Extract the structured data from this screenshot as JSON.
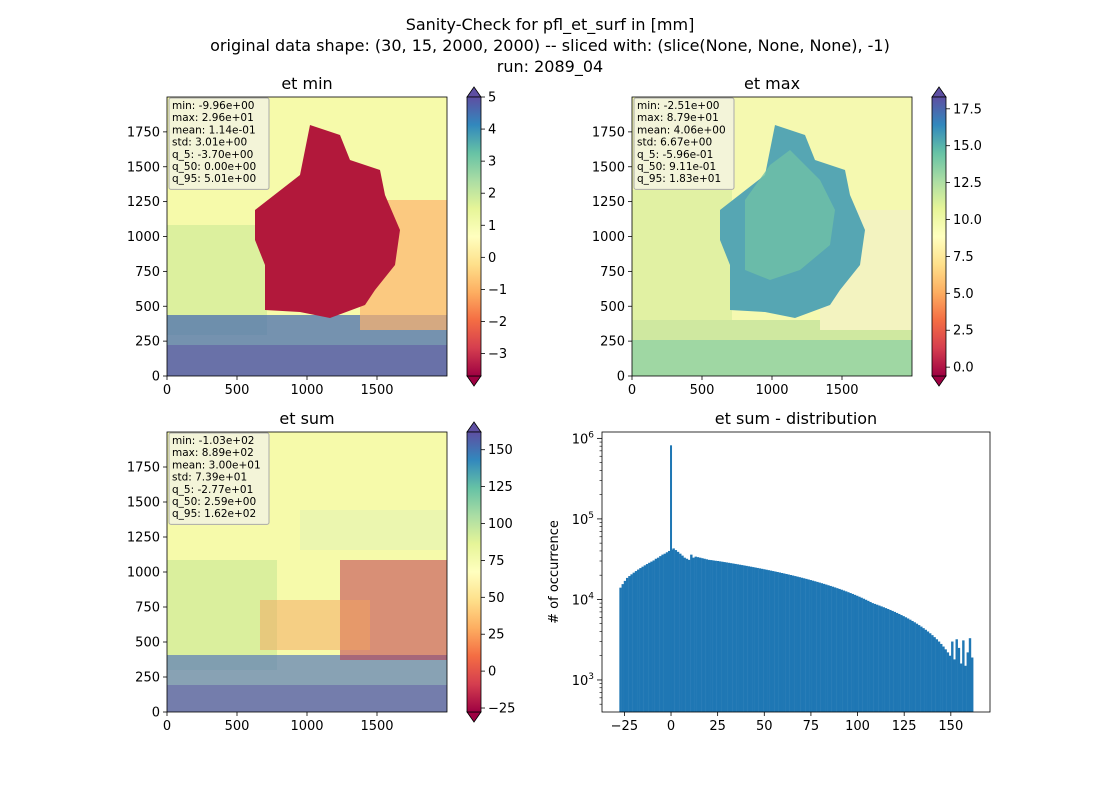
{
  "figure": {
    "title_lines": [
      "Sanity-Check for pfl_et_surf in [mm]",
      "original data shape: (30, 15, 2000, 2000) -- sliced with: (slice(None, None, None), -1)",
      "run: 2089_04"
    ]
  },
  "chart_data": [
    {
      "type": "heatmap",
      "title": "et min",
      "x_ticks": [
        0,
        500,
        1000,
        1500
      ],
      "y_ticks": [
        0,
        250,
        500,
        750,
        1000,
        1250,
        1500,
        1750
      ],
      "xlim": [
        0,
        2000
      ],
      "ylim": [
        0,
        2000
      ],
      "colormap": "Spectral",
      "colorbar": {
        "vmin": -3.7,
        "vmax": 5.0,
        "ticks": [
          -3,
          -2,
          -1,
          0,
          1,
          2,
          3,
          4,
          5
        ],
        "extend": "both"
      },
      "stats": [
        "min: -9.96e+00",
        "max: 2.96e+01",
        "mean: 1.14e-01",
        "std: 3.01e+00",
        "q_5: -3.70e+00",
        "q_50: 0.00e+00",
        "q_95: 5.01e+00"
      ]
    },
    {
      "type": "heatmap",
      "title": "et max",
      "x_ticks": [
        0,
        500,
        1000,
        1500
      ],
      "y_ticks": [
        0,
        250,
        500,
        750,
        1000,
        1250,
        1500,
        1750
      ],
      "xlim": [
        0,
        2000
      ],
      "ylim": [
        0,
        2000
      ],
      "colormap": "Spectral",
      "colorbar": {
        "vmin": -0.6,
        "vmax": 18.3,
        "ticks": [
          0.0,
          2.5,
          5.0,
          7.5,
          10.0,
          12.5,
          15.0,
          17.5
        ],
        "tick_labels": [
          "0.0",
          "2.5",
          "5.0",
          "7.5",
          "10.0",
          "12.5",
          "15.0",
          "17.5"
        ],
        "extend": "both"
      },
      "stats": [
        "min: -2.51e+00",
        "max: 8.79e+01",
        "mean: 4.06e+00",
        "std: 6.67e+00",
        "q_5: -5.96e-01",
        "q_50: 9.11e-01",
        "q_95: 1.83e+01"
      ]
    },
    {
      "type": "heatmap",
      "title": "et sum",
      "x_ticks": [
        0,
        500,
        1000,
        1500
      ],
      "y_ticks": [
        0,
        250,
        500,
        750,
        1000,
        1250,
        1500,
        1750
      ],
      "xlim": [
        0,
        2000
      ],
      "ylim": [
        0,
        2000
      ],
      "colormap": "Spectral",
      "colorbar": {
        "vmin": -27.7,
        "vmax": 162,
        "ticks": [
          -25,
          0,
          25,
          50,
          75,
          100,
          125,
          150
        ],
        "extend": "both"
      },
      "stats": [
        "min: -1.03e+02",
        "max: 8.89e+02",
        "mean: 3.00e+01",
        "std: 7.39e+01",
        "q_5: -2.77e+01",
        "q_50: 2.59e+00",
        "q_95: 1.62e+02"
      ]
    },
    {
      "type": "bar",
      "title": "et sum - distribution",
      "ylabel": "# of occurrence",
      "yscale": "log",
      "xlim": [
        -37,
        171
      ],
      "ylim": [
        400,
        1200000
      ],
      "x_ticks": [
        -25,
        0,
        25,
        50,
        75,
        100,
        125,
        150
      ],
      "y_ticks": [
        1000,
        10000,
        100000,
        1000000
      ],
      "y_tick_labels": [
        {
          "base": "10",
          "exp": "3"
        },
        {
          "base": "10",
          "exp": "4"
        },
        {
          "base": "10",
          "exp": "5"
        },
        {
          "base": "10",
          "exp": "6"
        }
      ],
      "color": "#1f77b4",
      "bin_start": -27.7,
      "bin_end": 162,
      "spike": {
        "x": 0,
        "value": 820000
      },
      "values": [
        14000,
        15500,
        17000,
        18500,
        19500,
        20500,
        21500,
        22500,
        23500,
        24500,
        25500,
        26500,
        27500,
        28500,
        29500,
        30500,
        32000,
        33000,
        34500,
        36000,
        37000,
        38500,
        40000,
        41500,
        43000,
        41000,
        39000,
        37000,
        35000,
        33000,
        32000,
        31000,
        36000,
        33000,
        34000,
        33500,
        33000,
        32500,
        32000,
        31500,
        31000,
        30800,
        30500,
        30200,
        30000,
        29700,
        29400,
        29100,
        28800,
        28500,
        28200,
        27900,
        27600,
        27300,
        27000,
        26700,
        26400,
        26100,
        25800,
        25500,
        25200,
        24900,
        24600,
        24300,
        24000,
        23700,
        23400,
        23100,
        22800,
        22500,
        22200,
        21900,
        21600,
        21300,
        21000,
        20700,
        20400,
        20100,
        19800,
        19500,
        19200,
        18900,
        18600,
        18300,
        18000,
        17700,
        17400,
        17100,
        16800,
        16500,
        16200,
        15900,
        15600,
        15300,
        15000,
        14700,
        14400,
        14100,
        13800,
        13500,
        13200,
        12900,
        12600,
        12300,
        12000,
        11700,
        11400,
        11100,
        10800,
        10500,
        10200,
        9900,
        9600,
        9300,
        9000,
        8800,
        8600,
        8400,
        8200,
        8000,
        7800,
        7600,
        7400,
        7200,
        7000,
        6800,
        6600,
        6400,
        6200,
        6000,
        5800,
        5600,
        5400,
        5200,
        5000,
        4800,
        4600,
        4400,
        4200,
        4000,
        3800,
        3600,
        3400,
        3200,
        3000,
        2800,
        2600,
        2400,
        2200,
        2000,
        3000,
        1800,
        3200,
        2500,
        1600,
        3100,
        1500,
        2200,
        3300,
        1900
      ]
    }
  ]
}
